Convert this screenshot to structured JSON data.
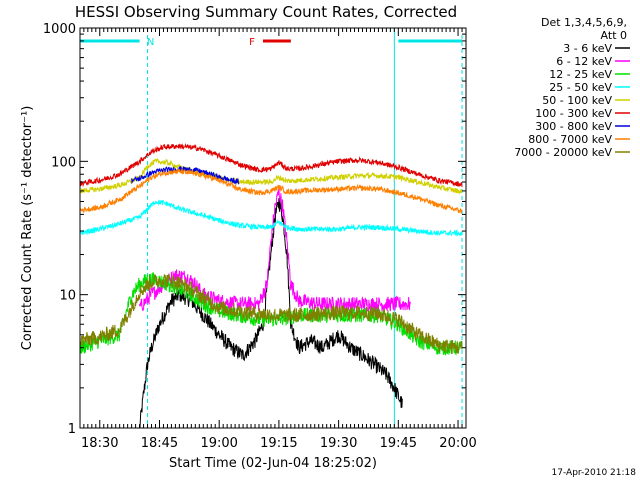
{
  "chart_data": {
    "type": "line",
    "title": "HESSI Observing Summary Count Rates, Corrected",
    "xlabel": "Start Time (02-Jun-04 18:25:02)",
    "ylabel": "Corrected Count Rate (s⁻¹ detector⁻¹)",
    "y_scale": "log",
    "ylim": [
      1,
      1000
    ],
    "xlim": [
      "18:25:02",
      "20:02:00"
    ],
    "x_tick_labels": [
      "18:30",
      "18:45",
      "19:00",
      "19:15",
      "19:30",
      "19:45",
      "20:00"
    ],
    "y_tick_labels": [
      "1",
      "10",
      "100",
      "1000"
    ],
    "legend_header": [
      "Det 1,3,4,5,6,9,",
      "Att 0"
    ],
    "legend_placement": "right",
    "footer_date": "17-Apr-2010 21:18",
    "annotations": [
      {
        "text": "N",
        "color": "#00e5e5",
        "type": "night",
        "intervals": [
          [
            "18:25:02",
            "18:40:00"
          ],
          [
            "19:45:00",
            "20:01:00"
          ]
        ]
      },
      {
        "text": "F",
        "color": "#e00000",
        "type": "flare",
        "intervals": [
          [
            "19:11:00",
            "19:18:00"
          ]
        ]
      }
    ],
    "vertical_lines": [
      {
        "time": "18:25:02",
        "style": "solid",
        "color": "#00e5e5"
      },
      {
        "time": "18:42:00",
        "style": "dashed",
        "color": "#00e5e5"
      },
      {
        "time": "19:44:00",
        "style": "solid",
        "color": "#00e5e5"
      },
      {
        "time": "20:01:00",
        "style": "dashed",
        "color": "#00e5e5"
      }
    ],
    "series": [
      {
        "name": "3 - 6 keV",
        "color": "#000000",
        "x": [
          "18:40",
          "18:41",
          "18:42",
          "18:43",
          "18:45",
          "18:48",
          "18:50",
          "18:53",
          "18:56",
          "19:00",
          "19:03",
          "19:06",
          "19:09",
          "19:11",
          "19:13",
          "19:14",
          "19:15",
          "19:16",
          "19:17",
          "19:18",
          "19:20",
          "19:23",
          "19:26",
          "19:30",
          "19:33",
          "19:36",
          "19:39",
          "19:42",
          "19:44",
          "19:46"
        ],
        "y": [
          1.0,
          1.8,
          3.0,
          4.0,
          6.0,
          9.0,
          10.0,
          9.0,
          7.0,
          5.0,
          4.0,
          3.5,
          4.5,
          6.0,
          20.0,
          38.0,
          50.0,
          38.0,
          20.0,
          6.0,
          4.0,
          4.5,
          4.0,
          5.0,
          4.0,
          3.5,
          3.0,
          2.5,
          2.0,
          1.5
        ]
      },
      {
        "name": "6 - 12 keV",
        "color": "#ff00ff",
        "x": [
          "18:40",
          "18:43",
          "18:46",
          "18:49",
          "18:52",
          "18:54",
          "18:56",
          "19:00",
          "19:05",
          "19:10",
          "19:12",
          "19:13",
          "19:14",
          "19:15",
          "19:16",
          "19:17",
          "19:18",
          "19:20",
          "19:25",
          "19:30",
          "19:35",
          "19:40",
          "19:45",
          "19:48"
        ],
        "y": [
          8.0,
          10.0,
          12.0,
          14.0,
          13.5,
          12.0,
          10.0,
          9.0,
          8.5,
          8.5,
          12.0,
          25.0,
          45.0,
          60.0,
          45.0,
          25.0,
          12.0,
          9.0,
          8.5,
          8.5,
          8.5,
          8.5,
          8.5,
          8.5
        ]
      },
      {
        "name": "12 - 25 keV",
        "color": "#00e000",
        "x": [
          "18:25",
          "18:30",
          "18:35",
          "18:38",
          "18:40",
          "18:42",
          "18:44",
          "18:47",
          "18:50",
          "18:53",
          "18:56",
          "19:00",
          "19:05",
          "19:10",
          "19:15",
          "19:20",
          "19:25",
          "19:30",
          "19:35",
          "19:40",
          "19:45",
          "19:50",
          "19:55",
          "20:00",
          "20:01"
        ],
        "y": [
          4.0,
          4.5,
          5.0,
          10.0,
          12.0,
          13.0,
          13.0,
          12.0,
          11.0,
          10.0,
          8.5,
          7.5,
          7.0,
          6.5,
          6.5,
          7.0,
          7.0,
          7.0,
          7.0,
          7.0,
          6.0,
          4.5,
          4.0,
          4.0,
          4.0
        ]
      },
      {
        "name": "25 - 50 keV",
        "color": "#00ffff",
        "x": [
          "18:25",
          "18:30",
          "18:35",
          "18:40",
          "18:42",
          "18:44",
          "18:47",
          "18:50",
          "18:55",
          "19:00",
          "19:05",
          "19:10",
          "19:13",
          "19:15",
          "19:17",
          "19:20",
          "19:25",
          "19:30",
          "19:35",
          "19:40",
          "19:45",
          "19:50",
          "19:55",
          "20:00",
          "20:01"
        ],
        "y": [
          29,
          31,
          34,
          38,
          44,
          50,
          48,
          44,
          40,
          36,
          33,
          32,
          32,
          35,
          32,
          31,
          31,
          31,
          32,
          32,
          31,
          30,
          29,
          29,
          28
        ]
      },
      {
        "name": "50 - 100 keV",
        "color": "#d0d000",
        "x": [
          "18:25",
          "18:30",
          "18:35",
          "18:40",
          "18:42",
          "18:44",
          "18:47",
          "18:50",
          "18:55",
          "19:00",
          "19:05",
          "19:10",
          "19:13",
          "19:15",
          "19:17",
          "19:20",
          "19:25",
          "19:30",
          "19:35",
          "19:40",
          "19:45",
          "19:50",
          "19:55",
          "20:00",
          "20:01"
        ],
        "y": [
          60,
          62,
          66,
          75,
          92,
          100,
          98,
          90,
          82,
          75,
          70,
          70,
          70,
          76,
          71,
          72,
          74,
          76,
          78,
          78,
          76,
          70,
          64,
          60,
          59
        ]
      },
      {
        "name": "100 - 300 keV",
        "color": "#e00000",
        "x": [
          "18:25",
          "18:30",
          "18:35",
          "18:40",
          "18:43",
          "18:46",
          "18:50",
          "18:55",
          "19:00",
          "19:05",
          "19:10",
          "19:13",
          "19:15",
          "19:17",
          "19:20",
          "19:25",
          "19:30",
          "19:35",
          "19:40",
          "19:45",
          "19:50",
          "19:55",
          "20:00",
          "20:01"
        ],
        "y": [
          68,
          72,
          80,
          100,
          118,
          128,
          130,
          125,
          110,
          95,
          86,
          88,
          98,
          88,
          88,
          94,
          100,
          102,
          98,
          90,
          80,
          72,
          68,
          67
        ]
      },
      {
        "name": "300 - 800 keV",
        "color": "#0000e0",
        "x": [
          "18:38",
          "18:40",
          "18:43",
          "18:46",
          "18:50",
          "18:54",
          "18:58",
          "19:00",
          "19:03",
          "19:05"
        ],
        "y": [
          72,
          74,
          82,
          86,
          88,
          86,
          80,
          76,
          72,
          70
        ]
      },
      {
        "name": "800 - 7000 keV",
        "color": "#ff7f00",
        "x": [
          "18:25",
          "18:30",
          "18:35",
          "18:40",
          "18:43",
          "18:46",
          "18:50",
          "18:55",
          "19:00",
          "19:05",
          "19:10",
          "19:13",
          "19:15",
          "19:17",
          "19:20",
          "19:25",
          "19:30",
          "19:35",
          "19:40",
          "19:45",
          "19:50",
          "19:55",
          "20:00",
          "20:01"
        ],
        "y": [
          43,
          45,
          52,
          65,
          76,
          82,
          84,
          80,
          72,
          62,
          58,
          60,
          64,
          59,
          60,
          61,
          62,
          63,
          62,
          58,
          53,
          47,
          43,
          42
        ]
      },
      {
        "name": "7000 - 20000 keV",
        "color": "#808000",
        "x": [
          "18:25",
          "18:30",
          "18:35",
          "18:38",
          "18:40",
          "18:43",
          "18:46",
          "18:49",
          "18:52",
          "18:55",
          "19:00",
          "19:05",
          "19:10",
          "19:15",
          "19:20",
          "19:25",
          "19:30",
          "19:35",
          "19:40",
          "19:45",
          "19:50",
          "19:55",
          "20:00",
          "20:01"
        ],
        "y": [
          4.5,
          4.8,
          5.5,
          8.0,
          10.5,
          12.5,
          13.0,
          12.5,
          11.5,
          10.0,
          8.0,
          7.5,
          7.2,
          7.0,
          7.0,
          7.2,
          7.3,
          7.3,
          7.2,
          6.5,
          5.0,
          4.2,
          4.0,
          4.0
        ]
      }
    ]
  }
}
